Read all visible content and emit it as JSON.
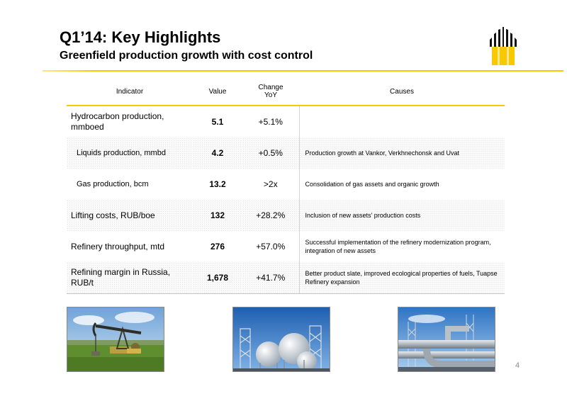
{
  "header": {
    "title": "Q1’14: Key Highlights",
    "subtitle": "Greenfield production growth with cost control",
    "accent_color": "#f6c900"
  },
  "table": {
    "columns": {
      "indicator": "Indicator",
      "value": "Value",
      "change_line1": "Change",
      "change_line2": "YoY",
      "causes": "Causes"
    },
    "rows": [
      {
        "indicator": "Hydrocarbon production, mmboed",
        "value": "5.1",
        "change": "+5.1%",
        "cause": ""
      },
      {
        "indicator": "Liquids production, mmbd",
        "value": "4.2",
        "change": "+0.5%",
        "cause": "Production growth at Vankor, Verkhnechonsk and Uvat"
      },
      {
        "indicator": "Gas production, bcm",
        "value": "13.2",
        "change": ">2x",
        "cause": "Consolidation of gas assets and organic growth"
      },
      {
        "indicator": "Lifting costs, RUB/boe",
        "value": "132",
        "change": "+28.2%",
        "cause": "Inclusion of new assets’ production costs"
      },
      {
        "indicator": "Refinery throughput,  mtd",
        "value": "276",
        "change": "+57.0%",
        "cause": "Successful implementation of the refinery modernization program, integration of new assets"
      },
      {
        "indicator": "Refining margin in Russia, RUB/t",
        "value": "1,678",
        "change": "+41.7%",
        "cause": "Better product slate, improved ecological properties of fuels, Tuapse Refinery expansion"
      }
    ]
  },
  "photos": [
    {
      "icon": "oil-pumpjack-photo"
    },
    {
      "icon": "gas-storage-spheres-photo"
    },
    {
      "icon": "refinery-pipes-photo"
    }
  ],
  "footer": {
    "page_number": "4"
  }
}
